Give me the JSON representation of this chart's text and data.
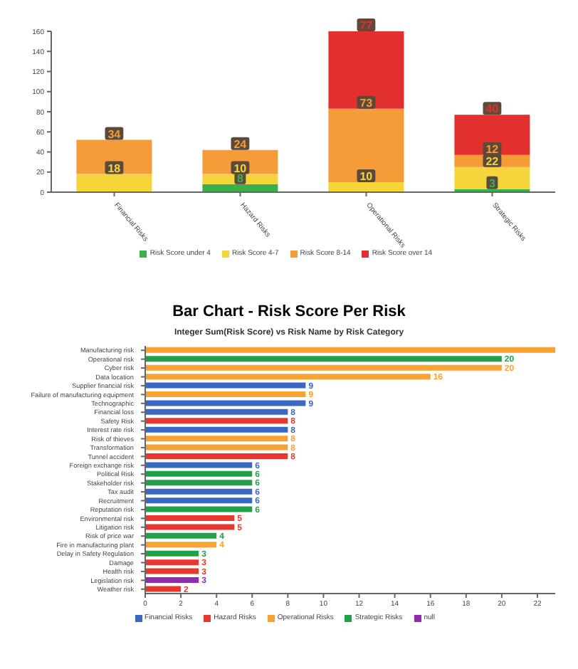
{
  "chart_data": [
    {
      "type": "bar",
      "stacked": true,
      "categories": [
        "Financial Risks",
        "Hazard Risks",
        "Operational Risks",
        "Strategic Risks"
      ],
      "series": [
        {
          "name": "Risk Score under 4",
          "color": "#3bb04a",
          "values": [
            null,
            8,
            null,
            3
          ]
        },
        {
          "name": "Risk Score 4-7",
          "color": "#f5d53a",
          "values": [
            18,
            10,
            10,
            22
          ]
        },
        {
          "name": "Risk Score 8-14",
          "color": "#f59b38",
          "values": [
            34,
            24,
            73,
            12
          ]
        },
        {
          "name": "Risk Score over 14",
          "color": "#e2302e",
          "values": [
            null,
            null,
            77,
            40
          ]
        }
      ],
      "ylim": [
        0,
        160
      ],
      "yticks": [
        0,
        20,
        40,
        60,
        80,
        100,
        120,
        140,
        160
      ],
      "data_labels": true,
      "legend": "bottom"
    },
    {
      "type": "bar",
      "orientation": "horizontal",
      "stacked": true,
      "title": "Bar Chart - Risk Score Per Risk",
      "subtitle": "Integer Sum(Risk Score) vs Risk Name by Risk Category",
      "categories": [
        "Manufacturing risk",
        "Operational risk",
        "Cyber risk",
        "Data location",
        "Supplier financial risk",
        "Failure of manufacturing equipment",
        "Technographic",
        "Financial loss",
        "Safety Risk",
        "Interest rate risk",
        "Risk of thieves",
        "Transformation",
        "Tunnel accident",
        "Foreign exchange risk",
        "Political Risk",
        "Stakeholder risk",
        "Tax audit",
        "Recruitment",
        "Reputation risk",
        "Environmental risk",
        "Litigation risk",
        "Risk of price war",
        "Fire in manufacturing plant",
        "Delay in Safety Regulation",
        "Damage",
        "Health risk",
        "Legislation risk",
        "Weather risk"
      ],
      "series": [
        {
          "name": "Financial Risks",
          "color": "#3a66c4",
          "values": [
            null,
            null,
            null,
            null,
            9,
            null,
            9,
            8,
            null,
            8,
            null,
            null,
            null,
            6,
            null,
            null,
            6,
            6,
            null,
            null,
            null,
            null,
            null,
            null,
            null,
            null,
            null,
            null
          ],
          "value_labels": [
            null,
            null,
            null,
            null,
            "9",
            null,
            "9",
            "8",
            null,
            "8",
            null,
            null,
            null,
            "6",
            null,
            null,
            "6",
            "6",
            null,
            null,
            null,
            null,
            null,
            null,
            null,
            null,
            null,
            null
          ]
        },
        {
          "name": "Hazard Risks",
          "color": "#e8372c",
          "values": [
            null,
            null,
            null,
            null,
            null,
            null,
            null,
            null,
            8,
            null,
            null,
            null,
            8,
            null,
            null,
            null,
            null,
            null,
            null,
            5,
            5,
            null,
            null,
            null,
            3,
            3,
            null,
            2
          ],
          "value_labels": [
            null,
            null,
            null,
            null,
            null,
            null,
            null,
            null,
            "8",
            null,
            null,
            null,
            "8",
            null,
            null,
            null,
            null,
            null,
            null,
            "5",
            "5",
            null,
            null,
            null,
            "3",
            "3",
            null,
            "2"
          ]
        },
        {
          "name": "Operational Risks",
          "color": "#f7a233",
          "values": [
            23,
            null,
            20,
            16,
            null,
            9,
            null,
            null,
            null,
            null,
            8,
            8,
            null,
            null,
            null,
            null,
            null,
            null,
            null,
            null,
            null,
            null,
            4,
            null,
            null,
            null,
            null,
            null
          ],
          "value_labels": [
            null,
            null,
            "20",
            "16",
            null,
            "9",
            null,
            null,
            null,
            null,
            "8",
            "8",
            null,
            null,
            null,
            null,
            null,
            null,
            null,
            null,
            null,
            null,
            "4",
            null,
            null,
            null,
            null,
            null
          ]
        },
        {
          "name": "Strategic Risks",
          "color": "#21a04a",
          "values": [
            null,
            20,
            null,
            null,
            null,
            null,
            null,
            null,
            null,
            null,
            null,
            null,
            null,
            null,
            6,
            6,
            null,
            null,
            6,
            null,
            null,
            4,
            null,
            3,
            null,
            null,
            null,
            null
          ],
          "value_labels": [
            null,
            "20",
            null,
            null,
            null,
            null,
            null,
            null,
            null,
            null,
            null,
            null,
            null,
            null,
            "6",
            "6",
            null,
            null,
            "6",
            null,
            null,
            "4",
            null,
            "3",
            null,
            null,
            null,
            null
          ]
        },
        {
          "name": "null",
          "color": "#8e2cb0",
          "values": [
            null,
            null,
            null,
            null,
            null,
            null,
            null,
            null,
            null,
            null,
            null,
            null,
            null,
            null,
            null,
            null,
            null,
            null,
            null,
            null,
            null,
            null,
            null,
            null,
            null,
            null,
            3,
            null
          ],
          "value_labels": [
            null,
            null,
            null,
            null,
            null,
            null,
            null,
            null,
            null,
            null,
            null,
            null,
            null,
            null,
            null,
            null,
            null,
            null,
            null,
            null,
            null,
            null,
            null,
            null,
            null,
            null,
            "3",
            null
          ]
        }
      ],
      "xlim": [
        0,
        23
      ],
      "xticks": [
        0,
        2,
        4,
        6,
        8,
        10,
        12,
        14,
        16,
        18,
        20,
        22
      ],
      "legend": "bottom"
    }
  ]
}
